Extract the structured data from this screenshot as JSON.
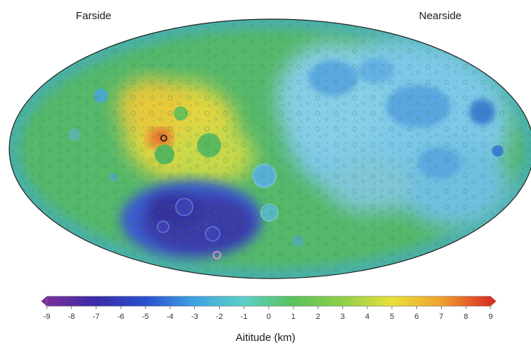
{
  "labels": {
    "farside": "Farside",
    "nearside": "Nearside"
  },
  "colorbar": {
    "title": "Aititude (km)",
    "ticks": [
      "-9",
      "-8",
      "-7",
      "-6",
      "-5",
      "-4",
      "-3",
      "-2",
      "-1",
      "0",
      "1",
      "2",
      "3",
      "4",
      "5",
      "6",
      "7",
      "8",
      "9"
    ],
    "min": -9,
    "max": 9,
    "colors": [
      "#7a2e9a",
      "#3a2ca8",
      "#2a4fd0",
      "#3fa3e0",
      "#5cd0c8",
      "#58c25a",
      "#8fd04a",
      "#e8e03a",
      "#f0a030",
      "#d83020"
    ]
  },
  "map": {
    "projection": "Hammer/Mollweide elliptical",
    "base_color": "#55b86a",
    "nearside_color": "#7cc8e8",
    "south_pole_aitken_color": "#3b3aa8",
    "highland_color": "#e8d43a",
    "peak_color": "#d83020"
  }
}
